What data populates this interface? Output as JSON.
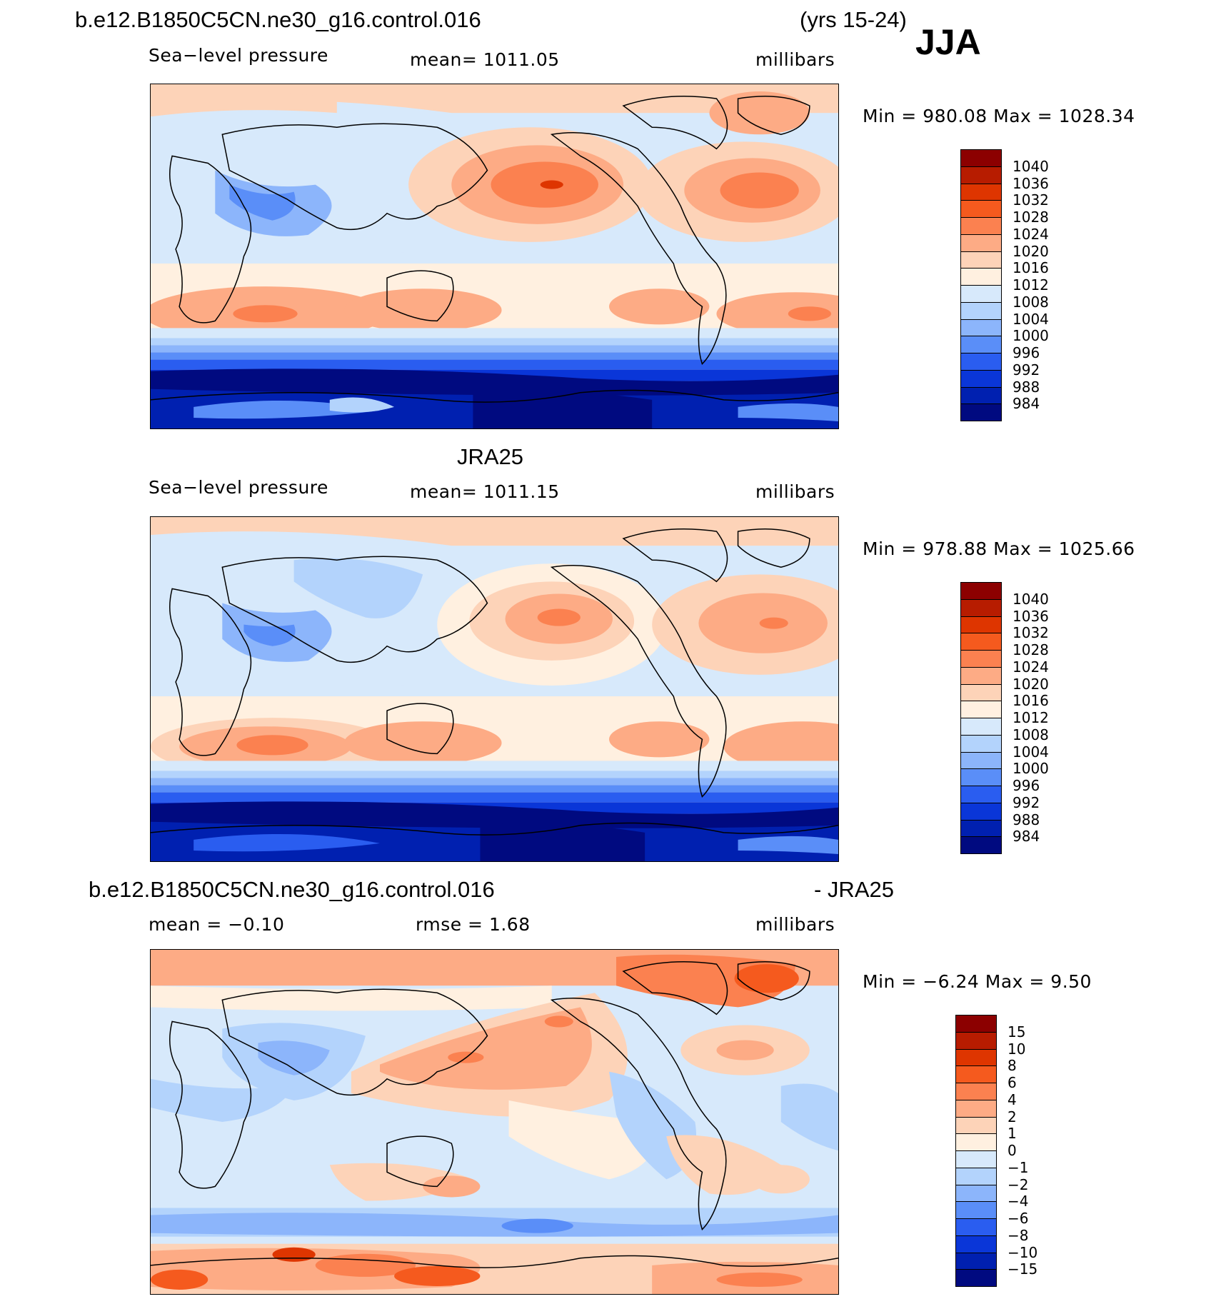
{
  "header": {
    "case_title": "b.e12.B1850C5CN.ne30_g16.control.016",
    "years": "(yrs 15-24)",
    "season": "JJA"
  },
  "panels": [
    {
      "id": "model",
      "title": "",
      "left_sub": "Sea−level pressure",
      "center_sub": "mean=  1011.05",
      "units": "millibars",
      "minmax": "Min  =  980.08  Max  =  1028.34"
    },
    {
      "id": "obs",
      "title": "JRA25",
      "left_sub": "Sea−level pressure",
      "center_sub": "mean=  1011.15",
      "units": "millibars",
      "minmax": "Min  =  978.88  Max  =  1025.66"
    },
    {
      "id": "diff",
      "title": "b.e12.B1850C5CN.ne30_g16.control.016",
      "title_right": "- JRA25",
      "left_sub": "mean  =    −0.10",
      "center_sub": "rmse  =      1.68",
      "units": "millibars",
      "minmax": "Min  =    −6.24  Max  =       9.50"
    }
  ],
  "colorbars": {
    "abs": {
      "labels": [
        "1040",
        "1036",
        "1032",
        "1028",
        "1024",
        "1020",
        "1016",
        "1012",
        "1008",
        "1004",
        "1000",
        "996",
        "992",
        "988",
        "984"
      ],
      "colors": [
        "#8c0000",
        "#b71c00",
        "#de3500",
        "#f55a1e",
        "#fb8150",
        "#fdab85",
        "#fdd3b8",
        "#fff0e0",
        "#d7e9fb",
        "#b3d3fc",
        "#8cb5fb",
        "#5a8ef8",
        "#2a5df0",
        "#0a36d8",
        "#0020b0",
        "#000a80"
      ]
    },
    "diff": {
      "labels": [
        "15",
        "10",
        "8",
        "6",
        "4",
        "2",
        "1",
        "0",
        "−1",
        "−2",
        "−4",
        "−6",
        "−8",
        "−10",
        "−15"
      ],
      "colors": [
        "#8c0000",
        "#b71c00",
        "#de3500",
        "#f55a1e",
        "#fb8150",
        "#fdab85",
        "#fdd3b8",
        "#fff0e0",
        "#d7e9fb",
        "#b3d3fc",
        "#8cb5fb",
        "#5a8ef8",
        "#2a5df0",
        "#0a36d8",
        "#0020b0",
        "#000a80"
      ]
    }
  }
}
